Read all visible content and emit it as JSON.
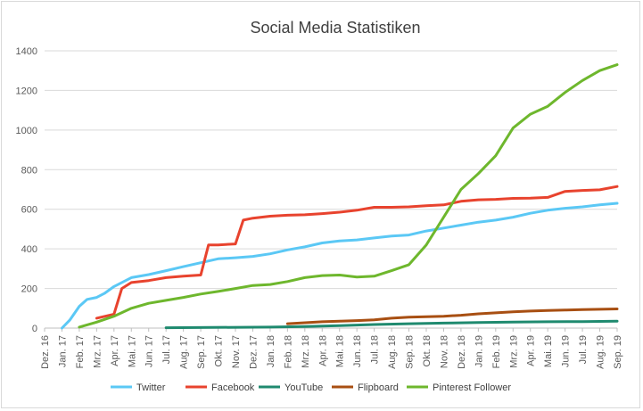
{
  "chart_data": {
    "type": "line",
    "title": "Social Media Statistiken",
    "xlabel": "",
    "ylabel": "",
    "ylim": [
      0,
      1400
    ],
    "yticks": [
      0,
      200,
      400,
      600,
      800,
      1000,
      1200,
      1400
    ],
    "grid": "horizontal",
    "legend": "bottom",
    "x_tick_labels": [
      "Dez. 16",
      "Jan. 17",
      "Feb. 17",
      "Mrz. 17",
      "Apr. 17",
      "Mai. 17",
      "Jun. 17",
      "Jul. 17",
      "Aug. 17",
      "Sep. 17",
      "Okt. 17",
      "Nov. 17",
      "Dez. 17",
      "Jan. 18",
      "Feb. 18",
      "Mrz. 18",
      "Apr. 18",
      "Mai. 18",
      "Jun. 18",
      "Jul. 18",
      "Aug. 18",
      "Sep. 18",
      "Okt. 18",
      "Nov. 18",
      "Dez. 18",
      "Jan. 19",
      "Feb. 19",
      "Mrz. 19",
      "Apr. 19",
      "Mai. 19",
      "Jun. 19",
      "Jul. 19",
      "Aug. 19",
      "Sep. 19"
    ],
    "series": [
      {
        "name": "Twitter",
        "color": "#5bc8f5",
        "x": [
          "Jan. 17",
          "Jan. 17",
          "Feb. 17",
          "Feb. 17",
          "Mrz. 17",
          "Mrz. 17",
          "Apr. 17",
          "Mai. 17",
          "Jun. 17",
          "Jul. 17",
          "Aug. 17",
          "Sep. 17",
          "Okt. 17",
          "Nov. 17",
          "Dez. 17",
          "Jan. 18",
          "Feb. 18",
          "Mrz. 18",
          "Apr. 18",
          "Mai. 18",
          "Jun. 18",
          "Jul. 18",
          "Aug. 18",
          "Sep. 18",
          "Okt. 18",
          "Nov. 18",
          "Dez. 18",
          "Jan. 19",
          "Feb. 19",
          "Mrz. 19",
          "Apr. 19",
          "Mai. 19",
          "Jun. 19",
          "Jul. 19",
          "Aug. 19",
          "Sep. 19"
        ],
        "values": [
          0,
          40,
          110,
          145,
          155,
          175,
          210,
          255,
          270,
          290,
          310,
          330,
          350,
          355,
          362,
          375,
          395,
          410,
          430,
          440,
          445,
          455,
          465,
          470,
          490,
          505,
          520,
          535,
          545,
          560,
          580,
          595,
          605,
          612,
          622,
          630
        ]
      },
      {
        "name": "Facebook",
        "color": "#e8432e",
        "x": [
          "Mrz. 17",
          "Apr. 17",
          "Apr. 17",
          "Mai. 17",
          "Jun. 17",
          "Jul. 17",
          "Aug. 17",
          "Sep. 17",
          "Sep. 17",
          "Okt. 17",
          "Nov. 17",
          "Nov. 17",
          "Dez. 17",
          "Jan. 18",
          "Feb. 18",
          "Mrz. 18",
          "Apr. 18",
          "Mai. 18",
          "Jun. 18",
          "Jul. 18",
          "Aug. 18",
          "Sep. 18",
          "Okt. 18",
          "Nov. 18",
          "Dez. 18",
          "Jan. 19",
          "Feb. 19",
          "Mrz. 19",
          "Apr. 19",
          "Mai. 19",
          "Jun. 19",
          "Jul. 19",
          "Aug. 19",
          "Sep. 19"
        ],
        "values": [
          50,
          70,
          200,
          230,
          240,
          255,
          262,
          268,
          420,
          420,
          425,
          545,
          555,
          565,
          570,
          572,
          578,
          585,
          595,
          610,
          610,
          612,
          618,
          622,
          640,
          648,
          650,
          655,
          656,
          660,
          690,
          695,
          698,
          715
        ]
      },
      {
        "name": "YouTube",
        "color": "#1f8a6f",
        "x": [
          "Jul. 17",
          "Jan. 18",
          "Mrz. 18",
          "Mai. 18",
          "Jul. 18",
          "Sep. 18",
          "Nov. 18",
          "Jan. 19",
          "Mrz. 19",
          "Mai. 19",
          "Jul. 19",
          "Sep. 19"
        ],
        "values": [
          2,
          5,
          8,
          12,
          18,
          22,
          25,
          28,
          30,
          32,
          33,
          35
        ]
      },
      {
        "name": "Flipboard",
        "color": "#a84f12",
        "x": [
          "Feb. 18",
          "Mrz. 18",
          "Apr. 18",
          "Mai. 18",
          "Jun. 18",
          "Jul. 18",
          "Aug. 18",
          "Sep. 18",
          "Okt. 18",
          "Nov. 18",
          "Dez. 18",
          "Jan. 19",
          "Feb. 19",
          "Mrz. 19",
          "Apr. 19",
          "Mai. 19",
          "Jun. 19",
          "Jul. 19",
          "Aug. 19",
          "Sep. 19"
        ],
        "values": [
          22,
          27,
          32,
          35,
          38,
          42,
          50,
          55,
          57,
          60,
          65,
          72,
          77,
          82,
          86,
          89,
          91,
          93,
          95,
          97
        ]
      },
      {
        "name": "Pinterest Follower",
        "color": "#6eb72d",
        "x": [
          "Feb. 17",
          "Mrz. 17",
          "Apr. 17",
          "Mai. 17",
          "Jun. 17",
          "Jul. 17",
          "Aug. 17",
          "Sep. 17",
          "Okt. 17",
          "Nov. 17",
          "Dez. 17",
          "Jan. 18",
          "Feb. 18",
          "Mrz. 18",
          "Apr. 18",
          "Mai. 18",
          "Jun. 18",
          "Jul. 18",
          "Aug. 18",
          "Sep. 18",
          "Okt. 18",
          "Nov. 18",
          "Dez. 18",
          "Jan. 19",
          "Feb. 19",
          "Mrz. 19",
          "Apr. 19",
          "Mai. 19",
          "Jun. 19",
          "Jul. 19",
          "Aug. 19",
          "Sep. 19"
        ],
        "values": [
          5,
          30,
          60,
          100,
          125,
          140,
          155,
          172,
          185,
          200,
          215,
          220,
          235,
          255,
          265,
          268,
          258,
          262,
          290,
          320,
          420,
          560,
          700,
          780,
          870,
          1010,
          1080,
          1120,
          1190,
          1250,
          1300,
          1330
        ]
      }
    ]
  }
}
